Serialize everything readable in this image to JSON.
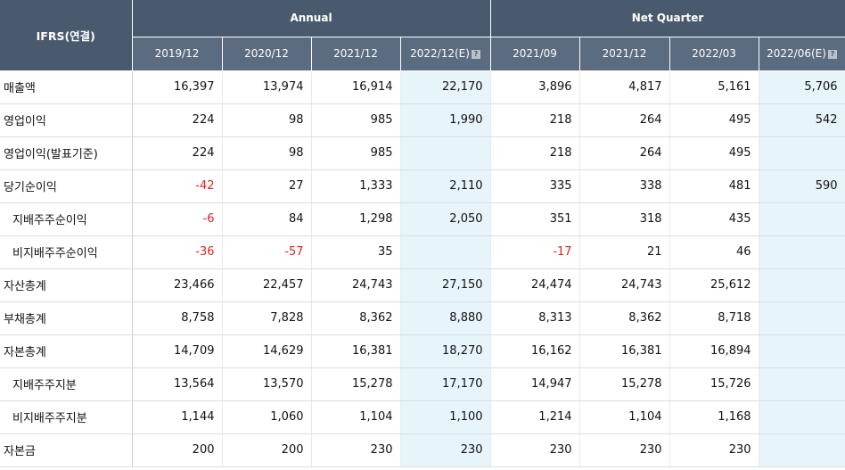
{
  "header": {
    "ifrs_label": "IFRS(연결)",
    "annual_label": "Annual",
    "quarter_label": "Net Quarter",
    "estimate_icon": "?",
    "annual_periods": [
      "2019/12",
      "2020/12",
      "2021/12",
      "2022/12(E)"
    ],
    "quarter_periods": [
      "2021/09",
      "2021/12",
      "2022/03",
      "2022/06(E)"
    ]
  },
  "rows": [
    {
      "label": "매출액",
      "sub": false,
      "values": [
        "16,397",
        "13,974",
        "16,914",
        "22,170",
        "3,896",
        "4,817",
        "5,161",
        "5,706"
      ]
    },
    {
      "label": "영업이익",
      "sub": false,
      "values": [
        "224",
        "98",
        "985",
        "1,990",
        "218",
        "264",
        "495",
        "542"
      ]
    },
    {
      "label": "영업이익(발표기준)",
      "sub": false,
      "values": [
        "224",
        "98",
        "985",
        "",
        "218",
        "264",
        "495",
        ""
      ]
    },
    {
      "label": "당기순이익",
      "sub": false,
      "values": [
        "-42",
        "27",
        "1,333",
        "2,110",
        "335",
        "338",
        "481",
        "590"
      ]
    },
    {
      "label": "지배주주순이익",
      "sub": true,
      "values": [
        "-6",
        "84",
        "1,298",
        "2,050",
        "351",
        "318",
        "435",
        ""
      ]
    },
    {
      "label": "비지배주주순이익",
      "sub": true,
      "values": [
        "-36",
        "-57",
        "35",
        "",
        "-17",
        "21",
        "46",
        ""
      ]
    },
    {
      "label": "자산총계",
      "sub": false,
      "values": [
        "23,466",
        "22,457",
        "24,743",
        "27,150",
        "24,474",
        "24,743",
        "25,612",
        ""
      ]
    },
    {
      "label": "부채총계",
      "sub": false,
      "values": [
        "8,758",
        "7,828",
        "8,362",
        "8,880",
        "8,313",
        "8,362",
        "8,718",
        ""
      ]
    },
    {
      "label": "자본총계",
      "sub": false,
      "values": [
        "14,709",
        "14,629",
        "16,381",
        "18,270",
        "16,162",
        "16,381",
        "16,894",
        ""
      ]
    },
    {
      "label": "지배주주지분",
      "sub": true,
      "values": [
        "13,564",
        "13,570",
        "15,278",
        "17,170",
        "14,947",
        "15,278",
        "15,726",
        ""
      ]
    },
    {
      "label": "비지배주주지분",
      "sub": true,
      "values": [
        "1,144",
        "1,060",
        "1,104",
        "1,100",
        "1,214",
        "1,104",
        "1,168",
        ""
      ]
    },
    {
      "label": "자본금",
      "sub": false,
      "values": [
        "200",
        "200",
        "230",
        "230",
        "230",
        "230",
        "230",
        ""
      ]
    }
  ],
  "colors": {
    "header_bg": "#4a5a6e",
    "estimate_bg": "#e7f4fa",
    "negative": "#e02020"
  }
}
